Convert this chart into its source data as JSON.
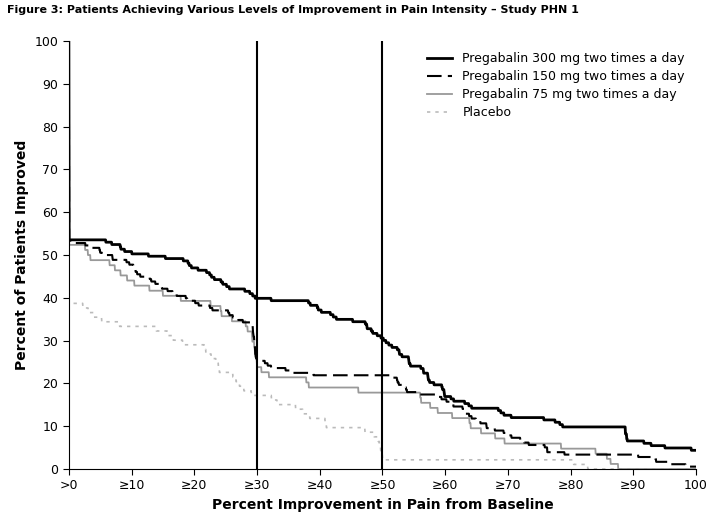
{
  "title": "Figure 3: Patients Achieving Various Levels of Improvement in Pain Intensity – Study PHN 1",
  "xlabel": "Percent Improvement in Pain from Baseline",
  "ylabel": "Percent of Patients Improved",
  "xlim": [
    0,
    100
  ],
  "ylim": [
    0,
    100
  ],
  "xtick_positions": [
    0,
    10,
    20,
    30,
    40,
    50,
    60,
    70,
    80,
    90,
    100
  ],
  "xtick_labels": [
    ">0",
    "≥10",
    "≥20",
    "≥30",
    "≥40",
    "≥50",
    "≥60",
    "≥70",
    "≥80",
    "≥90",
    "100"
  ],
  "ytick_positions": [
    0,
    10,
    20,
    30,
    40,
    50,
    60,
    70,
    80,
    90,
    100
  ],
  "vlines": [
    30,
    50
  ],
  "legend_entries": [
    "Pregabalin 300 mg two times a day",
    "Pregabalin 150 mg two times a day",
    "Pregabalin 75 mg two times a day",
    "Placebo"
  ],
  "p300_knots_x": [
    0,
    3,
    10,
    20,
    29,
    30,
    40,
    49,
    50,
    55,
    60,
    70,
    80,
    88,
    89,
    93,
    100
  ],
  "p300_knots_y": [
    61,
    61,
    56,
    50,
    46,
    45,
    40,
    36,
    33,
    26,
    19,
    13,
    10,
    15,
    7,
    6,
    5
  ],
  "p150_knots_x": [
    0,
    5,
    10,
    20,
    29,
    30,
    40,
    49,
    50,
    60,
    70,
    80,
    90,
    100
  ],
  "p150_knots_y": [
    50,
    48,
    45,
    40,
    36,
    28,
    26,
    27,
    27,
    18,
    11,
    5,
    2,
    1
  ],
  "p75_knots_x": [
    0,
    3,
    10,
    15,
    20,
    29,
    30,
    40,
    49,
    50,
    60,
    70,
    80,
    90,
    100
  ],
  "p75_knots_y": [
    53,
    52,
    46,
    43,
    42,
    37,
    28,
    23,
    21,
    26,
    17,
    10,
    5,
    1,
    1
  ],
  "placebo_knots_x": [
    0,
    3,
    10,
    20,
    29,
    30,
    40,
    49,
    50,
    60,
    70,
    80,
    90,
    100
  ],
  "placebo_knots_y": [
    37,
    36,
    30,
    25,
    20,
    19,
    14,
    11,
    7,
    5,
    4,
    3,
    1,
    1
  ],
  "p300_color": "#000000",
  "p150_color": "#000000",
  "p75_color": "#999999",
  "placebo_color": "#bbbbbb",
  "background_color": "#ffffff",
  "title_fontsize": 8,
  "axis_label_fontsize": 10,
  "tick_fontsize": 9,
  "legend_fontsize": 9
}
